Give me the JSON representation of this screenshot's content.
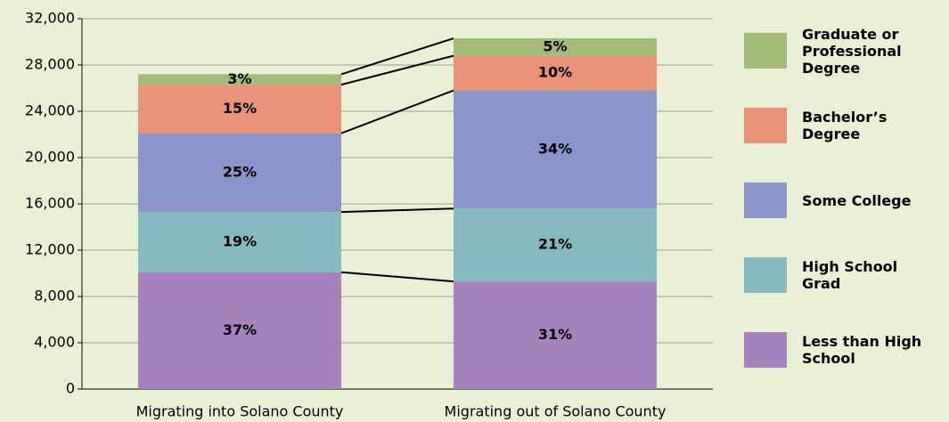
{
  "chart_data": {
    "type": "stacked_bar",
    "categories": [
      "Migrating into Solano County",
      "Migrating out of Solano County"
    ],
    "series": [
      {
        "name": "Less than High School",
        "color": "#a783bd",
        "values": [
          10100,
          9300
        ],
        "value_labels": [
          "37%",
          "31%"
        ]
      },
      {
        "name": "High School Grad",
        "color": "#86bac0",
        "values": [
          5200,
          6300
        ],
        "value_labels": [
          "19%",
          "21%"
        ]
      },
      {
        "name": "Some College",
        "color": "#8c95ca",
        "values": [
          6800,
          10200
        ],
        "value_labels": [
          "25%",
          "34%"
        ]
      },
      {
        "name": "Bachelor’s Degree",
        "color": "#e8937a",
        "values": [
          4200,
          3000
        ],
        "value_labels": [
          "15%",
          "10%"
        ]
      },
      {
        "name": "Graduate or Professional Degree",
        "color": "#a2bb78",
        "values": [
          900,
          1500
        ],
        "value_labels": [
          "3%",
          "5%"
        ]
      }
    ],
    "ylim": [
      0,
      32000
    ],
    "yticks": [
      0,
      {
        "value": 4000,
        "label": "4,000"
      },
      {
        "value": 8000,
        "label": "8,000"
      },
      {
        "value": 12000,
        "label": "12,000"
      },
      {
        "value": 16000,
        "label": "16,000"
      },
      {
        "value": 20000,
        "label": "20,000"
      },
      {
        "value": 24000,
        "label": "24,000"
      },
      {
        "value": 28000,
        "label": "28,000"
      },
      {
        "value": 32000,
        "label": "32,000"
      }
    ],
    "grid": true,
    "legend": "right"
  }
}
